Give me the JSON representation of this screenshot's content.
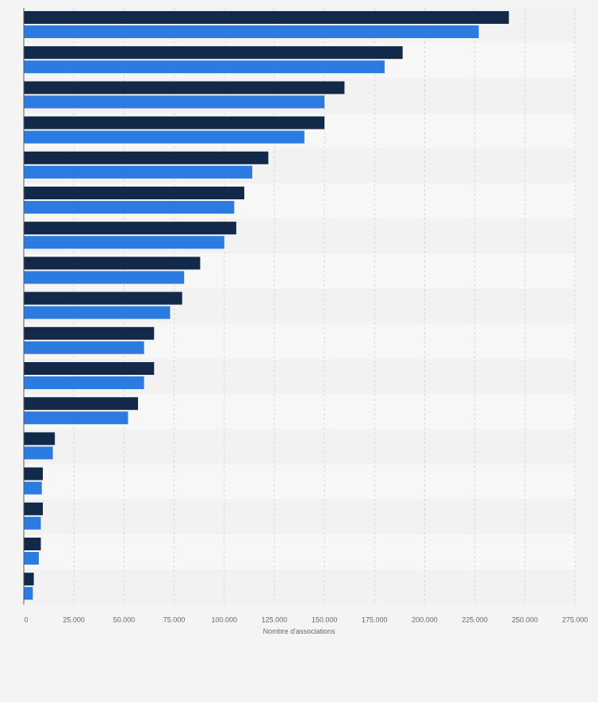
{
  "chart_data": {
    "type": "bar",
    "orientation": "horizontal",
    "title": "",
    "xlabel": "Nombre d'associations",
    "ylabel": "",
    "xlim": [
      0,
      275000
    ],
    "x_ticks": [
      0,
      25000,
      50000,
      75000,
      100000,
      125000,
      150000,
      175000,
      200000,
      225000,
      250000,
      275000
    ],
    "x_tick_labels": [
      "0",
      "25.000",
      "50.000",
      "75.000",
      "100.000",
      "125.000",
      "150.000",
      "175.000",
      "200.000",
      "225.000",
      "250.000",
      "275.000"
    ],
    "grid": true,
    "legend": "none",
    "categories": [
      "",
      "",
      "",
      "",
      "",
      "",
      "",
      "",
      "",
      "",
      "",
      "",
      "",
      "",
      "",
      "",
      ""
    ],
    "series": [
      {
        "color": "#13294a",
        "values": [
          242000,
          189000,
          160000,
          150000,
          122000,
          110000,
          106000,
          88000,
          79000,
          65000,
          65000,
          57000,
          15500,
          9500,
          9500,
          8500,
          5000
        ]
      },
      {
        "color": "#2c7be0",
        "values": [
          227000,
          180000,
          150000,
          140000,
          114000,
          105000,
          100000,
          80000,
          73000,
          60000,
          60000,
          52000,
          14500,
          9000,
          8500,
          7500,
          4500
        ]
      }
    ]
  },
  "colors": {
    "background": "#f4f4f4",
    "band_light": "#f7f7f7",
    "band_dark": "#f2f2f2",
    "grid": "#d7d7d7",
    "axis": "#5a5a5a",
    "tick_text": "#666666"
  }
}
